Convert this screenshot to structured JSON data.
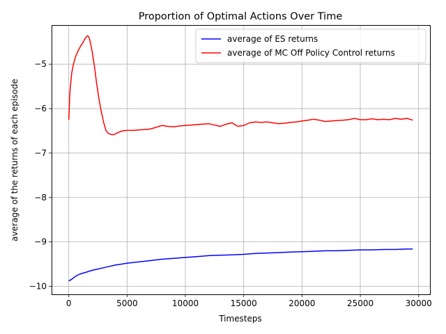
{
  "chart_data": {
    "type": "line",
    "title": "Proportion of Optimal Actions Over Time",
    "xlabel": "Timesteps",
    "ylabel": "average of the returns of each episode",
    "xlim": [
      -1475,
      30975
    ],
    "ylim": [
      -10.18,
      -4.12
    ],
    "xticks": [
      0,
      5000,
      10000,
      15000,
      20000,
      25000,
      30000
    ],
    "xtick_labels": [
      "0",
      "5000",
      "10000",
      "15000",
      "20000",
      "25000",
      "30000"
    ],
    "yticks": [
      -10,
      -9,
      -8,
      -7,
      -6,
      -5
    ],
    "ytick_labels": [
      "−10",
      "−9",
      "−8",
      "−7",
      "−6",
      "−5"
    ],
    "grid": true,
    "legend_position": "top-right",
    "series": [
      {
        "name": "average of ES returns",
        "color": "#0000ff",
        "x": [
          0,
          250,
          500,
          750,
          1000,
          1500,
          2000,
          2500,
          3000,
          3500,
          4000,
          4500,
          5000,
          6000,
          7000,
          8000,
          9000,
          10000,
          11000,
          12000,
          13000,
          14000,
          15000,
          16000,
          17000,
          18000,
          19000,
          20000,
          21000,
          22000,
          23000,
          24000,
          25000,
          26000,
          27000,
          28000,
          29000,
          29500
        ],
        "y": [
          -9.88,
          -9.84,
          -9.79,
          -9.75,
          -9.72,
          -9.68,
          -9.64,
          -9.61,
          -9.58,
          -9.55,
          -9.52,
          -9.5,
          -9.48,
          -9.45,
          -9.42,
          -9.39,
          -9.37,
          -9.35,
          -9.33,
          -9.31,
          -9.3,
          -9.29,
          -9.28,
          -9.26,
          -9.25,
          -9.24,
          -9.23,
          -9.22,
          -9.21,
          -9.2,
          -9.2,
          -9.19,
          -9.18,
          -9.18,
          -9.17,
          -9.17,
          -9.16,
          -9.16
        ]
      },
      {
        "name": "average of MC Off Policy Control returns",
        "color": "#ff0000",
        "x": [
          0,
          100,
          250,
          400,
          600,
          800,
          1000,
          1200,
          1400,
          1600,
          1700,
          1800,
          2000,
          2200,
          2400,
          2600,
          2800,
          3000,
          3200,
          3400,
          3600,
          3800,
          4000,
          4300,
          4600,
          5000,
          5500,
          6000,
          6500,
          7000,
          7500,
          8000,
          8500,
          9000,
          9500,
          10000,
          10500,
          11000,
          11500,
          12000,
          12500,
          13000,
          13500,
          14000,
          14500,
          15000,
          15500,
          16000,
          16500,
          17000,
          17500,
          18000,
          18500,
          19000,
          19500,
          20000,
          20500,
          21000,
          21500,
          22000,
          22500,
          23000,
          23500,
          24000,
          24500,
          25000,
          25500,
          26000,
          26500,
          27000,
          27500,
          28000,
          28500,
          29000,
          29500
        ],
        "y": [
          -6.25,
          -5.6,
          -5.2,
          -5.0,
          -4.82,
          -4.7,
          -4.6,
          -4.52,
          -4.42,
          -4.36,
          -4.38,
          -4.45,
          -4.7,
          -5.05,
          -5.45,
          -5.8,
          -6.08,
          -6.32,
          -6.5,
          -6.56,
          -6.58,
          -6.59,
          -6.57,
          -6.53,
          -6.5,
          -6.49,
          -6.49,
          -6.48,
          -6.47,
          -6.46,
          -6.42,
          -6.38,
          -6.4,
          -6.41,
          -6.39,
          -6.38,
          -6.37,
          -6.36,
          -6.35,
          -6.34,
          -6.37,
          -6.4,
          -6.35,
          -6.32,
          -6.4,
          -6.38,
          -6.32,
          -6.3,
          -6.31,
          -6.3,
          -6.32,
          -6.34,
          -6.33,
          -6.31,
          -6.3,
          -6.28,
          -6.26,
          -6.24,
          -6.26,
          -6.29,
          -6.28,
          -6.27,
          -6.26,
          -6.25,
          -6.22,
          -6.25,
          -6.25,
          -6.23,
          -6.25,
          -6.24,
          -6.25,
          -6.22,
          -6.24,
          -6.22,
          -6.26
        ]
      }
    ]
  }
}
